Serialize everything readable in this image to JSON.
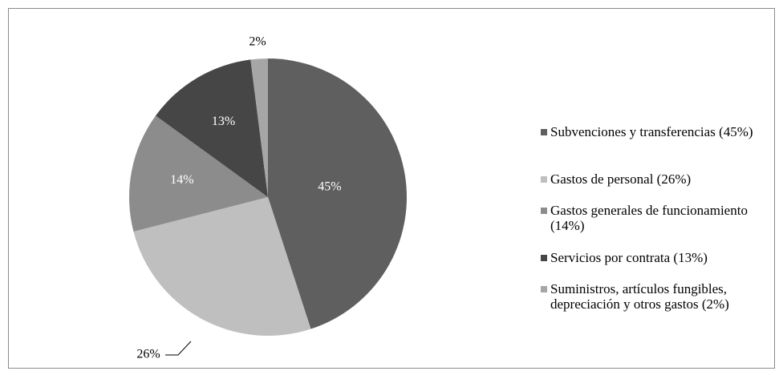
{
  "chart_data": {
    "type": "pie",
    "categories": [
      "Subvenciones y transferencias (45%)",
      "Gastos de personal (26%)",
      "Gastos generales de funcionamiento (14%)",
      "Servicios por contrata (13%)",
      "Suministros, artículos fungibles, depreciación y otros gastos (2%)"
    ],
    "values": [
      45,
      26,
      14,
      13,
      2
    ],
    "value_labels": [
      "45%",
      "26%",
      "14%",
      "13%",
      "2%"
    ],
    "colors": [
      "#5f5f5f",
      "#bfbfbf",
      "#8c8c8c",
      "#464646",
      "#a6a6a6"
    ],
    "legend": "right"
  }
}
